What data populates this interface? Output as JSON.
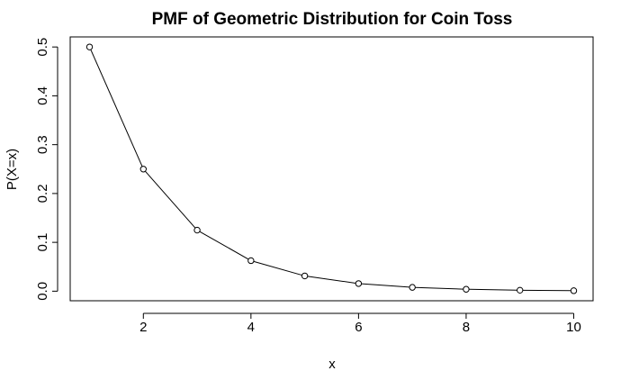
{
  "chart_data": {
    "type": "line",
    "title": "PMF of Geometric Distribution for Coin Toss",
    "xlabel": "x",
    "ylabel": "P(X=x)",
    "x": [
      1,
      2,
      3,
      4,
      5,
      6,
      7,
      8,
      9,
      10
    ],
    "y": [
      0.5,
      0.25,
      0.125,
      0.0625,
      0.03125,
      0.015625,
      0.0078125,
      0.00390625,
      0.001953125,
      0.0009765625
    ],
    "xlim": [
      0.64,
      10.36
    ],
    "ylim": [
      -0.0196,
      0.5206
    ],
    "xticks": [
      2,
      4,
      6,
      8,
      10
    ],
    "yticks": [
      0.0,
      0.1,
      0.2,
      0.3,
      0.4,
      0.5
    ],
    "xtick_labels": [
      "2",
      "4",
      "6",
      "8",
      "10"
    ],
    "ytick_labels": [
      "0.0",
      "0.1",
      "0.2",
      "0.3",
      "0.4",
      "0.5"
    ],
    "markers": "open-circle",
    "line_color": "#000000",
    "grid": false,
    "legend": "none"
  }
}
